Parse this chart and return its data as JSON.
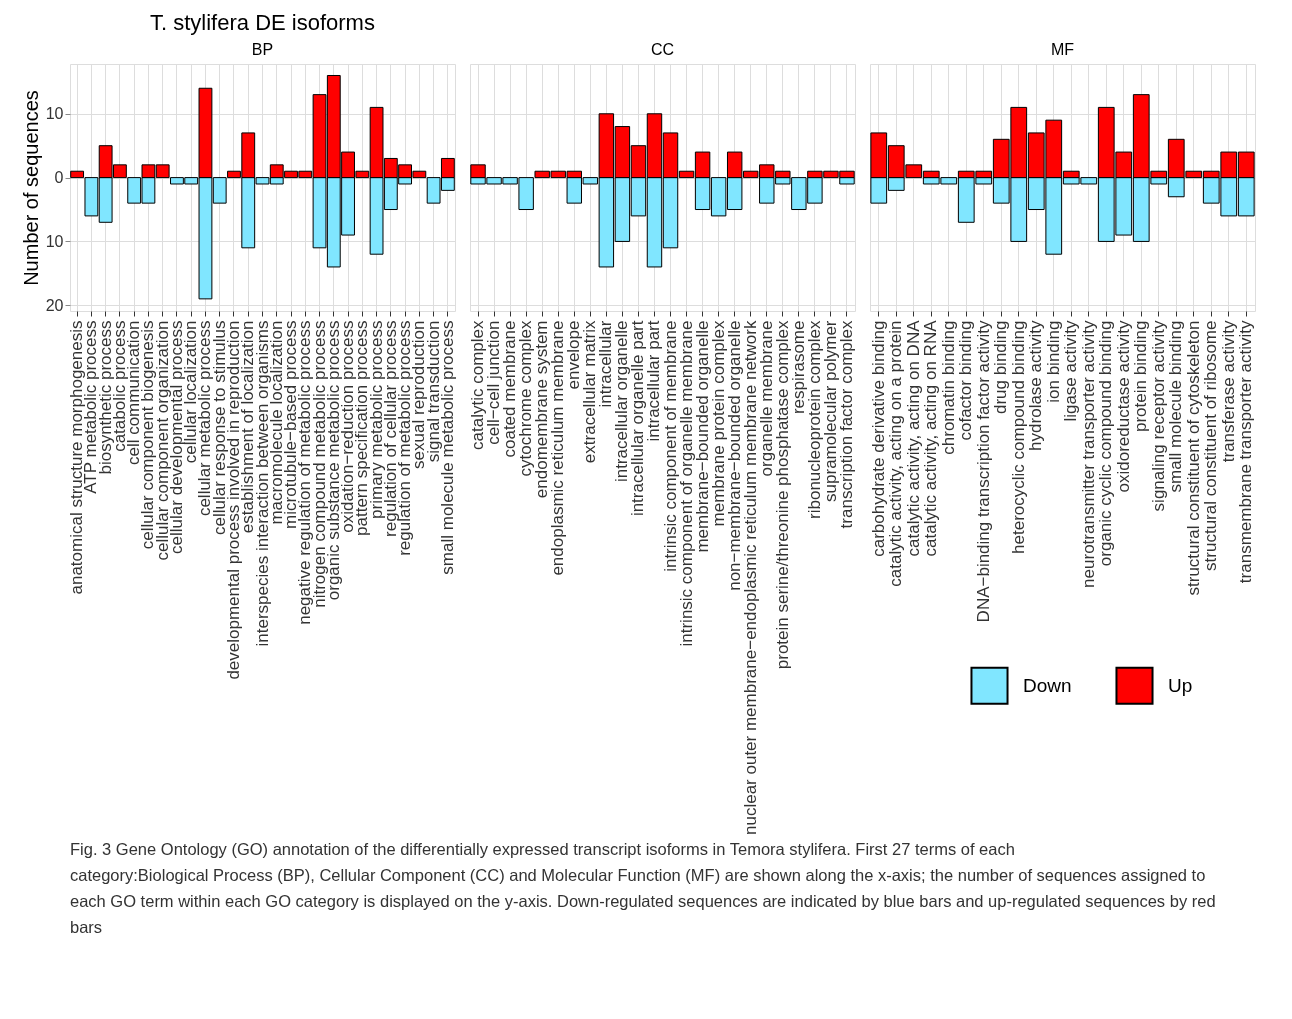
{
  "chart_data": [
    {
      "type": "bar",
      "title": "T. stylifera DE isoforms",
      "subtitle": "BP",
      "ylabel": "Number of sequences",
      "stacked": true,
      "grid": true,
      "legend": "bottom right",
      "categories": [
        "anatomical structure morphogenesis",
        "ATP metabolic process",
        "biosynthetic process",
        "catabolic process",
        "cell communication",
        "cellular component biogenesis",
        "cellular component organization",
        "cellular developmental process",
        "cellular localization",
        "cellular metabolic process",
        "cellular response to stimulus",
        "developmental process involved in reproduction",
        "establishment of localization",
        "interspecies interaction between organisms",
        "macromolecule localization",
        "microtubule−based process",
        "negative regulation of metabolic process",
        "nitrogen compound metabolic process",
        "organic substance metabolic process",
        "oxidation−reduction process",
        "pattern specification process",
        "primary metabolic process",
        "regulation of cellular process",
        "regulation of metabolic process",
        "sexual reproduction",
        "signal transduction",
        "small molecule metabolic process"
      ],
      "ylim": [
        -20.9,
        17.8
      ],
      "yticks": [
        {
          "value": -20,
          "label": "20"
        },
        {
          "value": -10,
          "label": "10"
        },
        0,
        10
      ],
      "series": [
        {
          "name": "Down",
          "color": "#80e6ff",
          "values": [
            0,
            -6,
            -7,
            0,
            -4,
            -4,
            0,
            -1,
            -1,
            -19,
            -4,
            0,
            -11,
            -1,
            -1,
            0,
            0,
            -11,
            -14,
            -9,
            0,
            -12,
            -5,
            -1,
            0,
            -4,
            -2
          ]
        },
        {
          "name": "Up",
          "color": "#ff0000",
          "values": [
            1,
            0,
            5,
            2,
            0,
            2,
            2,
            0,
            0,
            14,
            0,
            1,
            7,
            0,
            2,
            1,
            1,
            13,
            16,
            4,
            1,
            11,
            3,
            2,
            1,
            0,
            3
          ]
        }
      ]
    },
    {
      "type": "bar",
      "subtitle": "CC",
      "stacked": true,
      "grid": true,
      "legend": "bottom right",
      "tick_labels": "x",
      "categories": [
        "catalytic complex",
        "cell−cell junction",
        "coated membrane",
        "cytochrome complex",
        "endomembrane system",
        "endoplasmic reticulum membrane",
        "envelope",
        "extracellular matrix",
        "intracellular",
        "intracellular organelle",
        "intracellular organelle part",
        "intracellular part",
        "intrinsic component of membrane",
        "intrinsic component of organelle membrane",
        "membrane−bounded organelle",
        "membrane protein complex",
        "non−membrane−bounded organelle",
        "nuclear outer membrane−endoplasmic reticulum membrane network",
        "organelle membrane",
        "protein serine/threonine phosphatase complex",
        "respirasome",
        "ribonucleoprotein complex",
        "supramolecular polymer",
        "transcription factor complex"
      ],
      "ylim": [
        -20.9,
        17.8
      ],
      "yticks": [
        -20,
        -10,
        0,
        10
      ],
      "series": [
        {
          "name": "Down",
          "color": "#80e6ff",
          "values": [
            -1,
            -1,
            -1,
            -5,
            0,
            0,
            -4,
            -1,
            -14,
            -10,
            -6,
            -14,
            -11,
            0,
            -5,
            -6,
            -5,
            0,
            -4,
            -1,
            -5,
            -4,
            0,
            -1
          ]
        },
        {
          "name": "Up",
          "color": "#ff0000",
          "values": [
            2,
            0,
            0,
            0,
            1,
            1,
            1,
            0,
            10,
            8,
            5,
            10,
            7,
            1,
            4,
            0,
            4,
            1,
            2,
            1,
            0,
            1,
            1,
            1
          ]
        }
      ]
    },
    {
      "type": "bar",
      "subtitle": "MF",
      "stacked": true,
      "grid": true,
      "legend": "bottom right",
      "tick_labels": "x",
      "categories": [
        "carbohydrate derivative binding",
        "catalytic activity, acting on a protein",
        "catalytic activity, acting on DNA",
        "catalytic activity, acting on RNA",
        "chromatin binding",
        "cofactor binding",
        "DNA−binding transcription factor activity",
        "drug binding",
        "heterocyclic compound binding",
        "hydrolase activity",
        "ion binding",
        "ligase activity",
        "neurotransmitter transporter activity",
        "organic cyclic compound binding",
        "oxidoreductase activity",
        "protein binding",
        "signaling receptor activity",
        "small molecule binding",
        "structural constituent of cytoskeleton",
        "structural constituent of ribosome",
        "transferase activity",
        "transmembrane transporter activity"
      ],
      "ylim": [
        -20.9,
        17.8
      ],
      "yticks": [
        -20,
        -10,
        0,
        10
      ],
      "series": [
        {
          "name": "Down",
          "color": "#80e6ff",
          "values": [
            -4,
            -2,
            0,
            -1,
            -1,
            -7,
            -1,
            -4,
            -10,
            -5,
            -12,
            -1,
            -1,
            -10,
            -9,
            -10,
            -1,
            -3,
            0,
            -4,
            -6,
            -6
          ]
        },
        {
          "name": "Up",
          "color": "#ff0000",
          "values": [
            7,
            5,
            2,
            1,
            0,
            1,
            1,
            6,
            11,
            7,
            9,
            1,
            0,
            11,
            4,
            13,
            1,
            6,
            1,
            1,
            4,
            4
          ]
        }
      ],
      "annotations": [
        "Fig. 3 Gene Ontology (GO) annotation of the differentially expressed transcript isoforms in Temora stylifera. First 27 terms of each category:Biological Process (BP), Cellular Component (CC) and Molecular Function (MF) are shown along the x-axis; the number of sequences assigned to each GO term within each GO category is displayed on the y-axis. Down-regulated sequences are indicated by blue bars and up-regulated sequences by red bars"
      ]
    }
  ]
}
